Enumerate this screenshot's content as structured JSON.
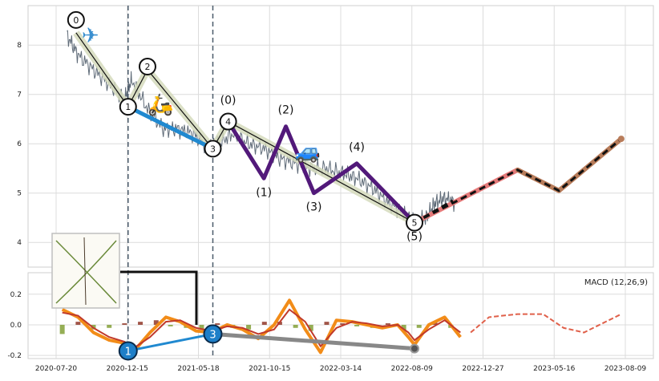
{
  "chart_data": [
    {
      "type": "line",
      "panel": "price",
      "ylim": [
        3.5,
        8.8
      ],
      "yticks": [
        4,
        5,
        6,
        7,
        8
      ],
      "grid": true,
      "price_series": {
        "x": [
          "2020-08-10",
          "2020-09-01",
          "2020-10-01",
          "2020-11-01",
          "2020-12-01",
          "2020-12-15",
          "2021-01-15",
          "2021-02-15",
          "2021-03-15",
          "2021-04-15",
          "2021-05-15",
          "2021-06-01",
          "2021-07-01",
          "2021-08-01",
          "2021-09-01",
          "2021-10-01",
          "2021-11-01",
          "2021-12-01",
          "2022-01-01",
          "2022-02-01",
          "2022-03-01",
          "2022-04-01",
          "2022-05-01",
          "2022-06-01",
          "2022-06-22",
          "2022-07-15",
          "2022-08-01",
          "2022-08-20",
          "2022-09-10"
        ],
        "values": [
          8.2,
          7.8,
          7.5,
          7.2,
          6.9,
          7.3,
          6.7,
          6.3,
          6.3,
          6.2,
          5.9,
          6.0,
          6.2,
          6.0,
          5.9,
          5.7,
          5.6,
          5.5,
          5.5,
          5.4,
          5.3,
          5.1,
          4.8,
          4.6,
          4.4,
          4.5,
          4.8,
          4.9,
          4.8
        ]
      },
      "wave_points": [
        {
          "label": "0",
          "x": "2020-08-28",
          "y": 8.25
        },
        {
          "label": "1",
          "x": "2020-12-08",
          "y": 6.75
        },
        {
          "label": "2",
          "x": "2021-01-15",
          "y": 7.5
        },
        {
          "label": "3",
          "x": "2021-05-23",
          "y": 5.9
        },
        {
          "label": "4",
          "x": "2021-06-22",
          "y": 6.45
        },
        {
          "label": "5",
          "x": "2022-06-22",
          "y": 4.4
        }
      ],
      "sub_wave_points": [
        {
          "label": "(0)",
          "x": "2021-06-22",
          "y": 6.45
        },
        {
          "label": "(1)",
          "x": "2021-08-31",
          "y": 5.3
        },
        {
          "label": "(2)",
          "x": "2021-10-13",
          "y": 6.35
        },
        {
          "label": "(3)",
          "x": "2021-12-07",
          "y": 5.0
        },
        {
          "label": "(4)",
          "x": "2022-03-01",
          "y": 5.6
        },
        {
          "label": "(5)",
          "x": "2022-06-22",
          "y": 4.4
        }
      ],
      "projection": {
        "x": [
          "2022-06-22",
          "2023-01-10",
          "2023-04-01",
          "2023-08-01"
        ],
        "values": [
          4.4,
          5.47,
          5.05,
          6.1
        ]
      },
      "channel_line": {
        "x": [
          "2020-12-08",
          "2021-05-23"
        ],
        "values": [
          6.75,
          5.9
        ]
      },
      "vertical_markers": [
        "2020-12-08",
        "2021-05-23"
      ],
      "colors": {
        "price": "#5f6b78",
        "wave_band": "#d5dbbc",
        "sub_waves": "#52197a",
        "channel": "#2089d0",
        "projection_red": "#e57a7a",
        "projection_brown": "#b87c5a",
        "projection_dash": "#111111"
      },
      "icons": [
        "airplane-icon",
        "scooter-icon",
        "car-icon"
      ]
    },
    {
      "type": "line",
      "panel": "macd",
      "title": "MACD (12,26,9)",
      "ylim": [
        -0.22,
        0.34
      ],
      "yticks": [
        -0.2,
        0.0,
        0.2
      ],
      "grid": true,
      "x": [
        "2020-08-01",
        "2020-09-01",
        "2020-10-01",
        "2020-11-01",
        "2020-12-01",
        "2020-12-20",
        "2021-01-20",
        "2021-02-20",
        "2021-03-20",
        "2021-04-20",
        "2021-05-20",
        "2021-06-20",
        "2021-07-20",
        "2021-08-20",
        "2021-09-20",
        "2021-10-20",
        "2021-11-20",
        "2021-12-20",
        "2022-01-20",
        "2022-02-20",
        "2022-03-20",
        "2022-04-20",
        "2022-05-20",
        "2022-06-10",
        "2022-06-22",
        "2022-07-20",
        "2022-08-20",
        "2022-09-20"
      ],
      "series": [
        {
          "values": [
            0.1,
            0.05,
            -0.05,
            -0.1,
            -0.12,
            -0.17,
            -0.05,
            0.05,
            0.02,
            -0.04,
            -0.05,
            0.0,
            -0.03,
            -0.09,
            0.0,
            0.16,
            -0.03,
            -0.18,
            0.03,
            0.02,
            0.0,
            -0.02,
            0.0,
            -0.08,
            -0.13,
            0.0,
            0.05,
            -0.08
          ]
        },
        {
          "values": [
            0.08,
            0.06,
            -0.02,
            -0.08,
            -0.11,
            -0.15,
            -0.08,
            0.02,
            0.03,
            -0.02,
            -0.04,
            -0.01,
            -0.02,
            -0.06,
            -0.03,
            0.1,
            0.02,
            -0.14,
            -0.02,
            0.02,
            0.01,
            -0.01,
            0.0,
            -0.05,
            -0.1,
            -0.03,
            0.03,
            -0.05
          ]
        }
      ],
      "projection_x": [
        "2022-10-10",
        "2022-11-15",
        "2023-01-10",
        "2023-03-01",
        "2023-04-10",
        "2023-05-20",
        "2023-08-01"
      ],
      "projection_values": [
        -0.05,
        0.05,
        0.07,
        0.07,
        -0.02,
        -0.05,
        0.07
      ],
      "histogram": {
        "x": [
          "2020-08-01",
          "2020-09-01",
          "2020-10-01",
          "2020-11-01",
          "2020-12-01",
          "2021-01-01",
          "2021-02-01",
          "2021-03-01",
          "2021-04-01",
          "2021-05-01",
          "2021-06-01",
          "2021-07-01",
          "2021-08-01",
          "2021-09-01",
          "2021-10-01",
          "2021-11-01",
          "2021-12-01",
          "2022-01-01",
          "2022-02-01",
          "2022-03-01",
          "2022-04-01",
          "2022-05-01",
          "2022-06-01",
          "2022-07-01",
          "2022-08-01",
          "2022-09-01"
        ],
        "values": [
          -0.06,
          0.02,
          -0.03,
          -0.02,
          0.01,
          0.02,
          0.03,
          -0.01,
          -0.02,
          -0.03,
          0.01,
          -0.02,
          -0.03,
          0.02,
          0.02,
          -0.02,
          -0.04,
          0.02,
          0.01,
          -0.01,
          -0.02,
          0.01,
          -0.04,
          -0.02,
          0.02,
          -0.02
        ]
      },
      "connectors": [
        {
          "label": "1",
          "x": "2020-12-08",
          "y": -0.17
        },
        {
          "label": "3",
          "x": "2021-05-23",
          "y": -0.06
        },
        {
          "label": "",
          "x": "2022-06-22",
          "y": -0.155
        }
      ]
    }
  ],
  "x_axis": {
    "tick_labels": [
      "2020-07-20",
      "2020-12-15",
      "2021-05-18",
      "2021-10-15",
      "2022-03-14",
      "2022-08-09",
      "2022-12-27",
      "2023-05-16",
      "2023-08-09"
    ],
    "range": [
      "2020-07-20",
      "2023-08-09"
    ]
  }
}
